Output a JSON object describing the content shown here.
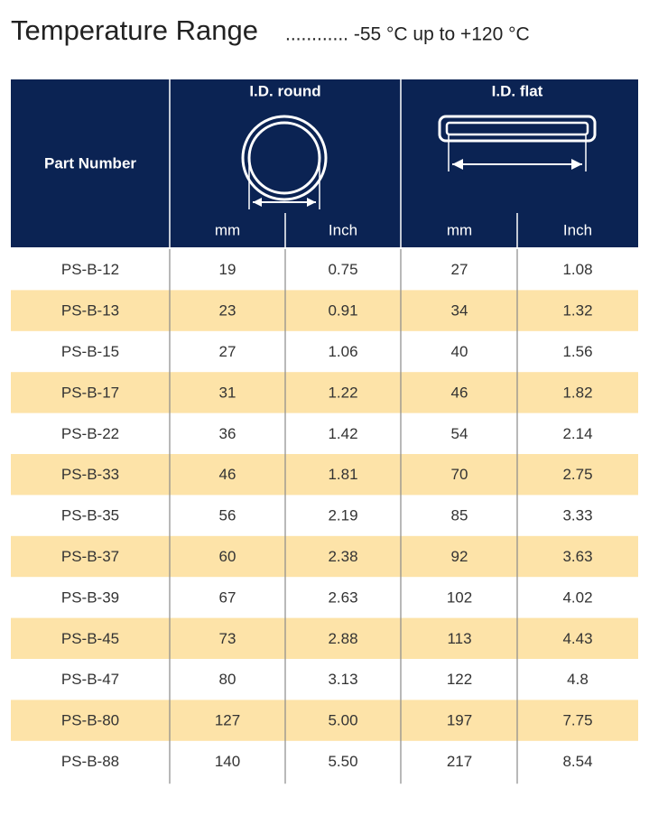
{
  "header": {
    "title": "Temperature Range",
    "range": "............ -55 °C up to +120 °C"
  },
  "table": {
    "part_header": "Part Number",
    "groups": [
      "I.D. round",
      "I.D. flat"
    ],
    "units": [
      "mm",
      "Inch",
      "mm",
      "Inch"
    ],
    "rows": [
      [
        "PS-B-12",
        "19",
        "0.75",
        "27",
        "1.08"
      ],
      [
        "PS-B-13",
        "23",
        "0.91",
        "34",
        "1.32"
      ],
      [
        "PS-B-15",
        "27",
        "1.06",
        "40",
        "1.56"
      ],
      [
        "PS-B-17",
        "31",
        "1.22",
        "46",
        "1.82"
      ],
      [
        "PS-B-22",
        "36",
        "1.42",
        "54",
        "2.14"
      ],
      [
        "PS-B-33",
        "46",
        "1.81",
        "70",
        "2.75"
      ],
      [
        "PS-B-35",
        "56",
        "2.19",
        "85",
        "3.33"
      ],
      [
        "PS-B-37",
        "60",
        "2.38",
        "92",
        "3.63"
      ],
      [
        "PS-B-39",
        "67",
        "2.63",
        "102",
        "4.02"
      ],
      [
        "PS-B-45",
        "73",
        "2.88",
        "113",
        "4.43"
      ],
      [
        "PS-B-47",
        "80",
        "3.13",
        "122",
        "4.8"
      ],
      [
        "PS-B-80",
        "127",
        "5.00",
        "197",
        "7.75"
      ],
      [
        "PS-B-88",
        "140",
        "5.50",
        "217",
        "8.54"
      ]
    ]
  }
}
